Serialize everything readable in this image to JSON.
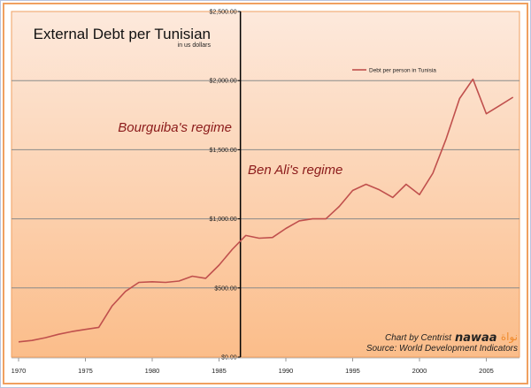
{
  "chart_data": {
    "type": "line",
    "title": "External Debt per Tunisian",
    "subtitle": "in us dollars",
    "xlabel": "",
    "ylabel": "",
    "ylim": [
      0,
      2500
    ],
    "xlim": [
      1970,
      2007
    ],
    "grid": true,
    "legend_position": "top-right",
    "y_ticks": [
      "$0.00",
      "$500.00",
      "$1,000.00",
      "$1,500.00",
      "$2,000.00",
      "$2,500.00"
    ],
    "x_ticks": [
      "1970",
      "1975",
      "1980",
      "1985",
      "1990",
      "1995",
      "2000",
      "2005"
    ],
    "x": [
      1970,
      1971,
      1972,
      1973,
      1974,
      1975,
      1976,
      1977,
      1978,
      1979,
      1980,
      1981,
      1982,
      1983,
      1984,
      1985,
      1986,
      1987,
      1988,
      1989,
      1990,
      1991,
      1992,
      1993,
      1994,
      1995,
      1996,
      1997,
      1998,
      1999,
      2000,
      2001,
      2002,
      2003,
      2004,
      2005,
      2006,
      2007
    ],
    "series": [
      {
        "name": "Debt per person in Tunisia",
        "color": "#c0504d",
        "values": [
          110,
          120,
          140,
          165,
          185,
          200,
          215,
          370,
          475,
          540,
          545,
          540,
          550,
          585,
          570,
          665,
          780,
          880,
          860,
          865,
          930,
          985,
          1000,
          1000,
          1090,
          1205,
          1250,
          1210,
          1155,
          1250,
          1175,
          1330,
          1580,
          1870,
          2010,
          1760,
          1820,
          1880
        ]
      }
    ],
    "annotations": [
      {
        "text": "Bourguiba's regime",
        "color": "#8b1a1a"
      },
      {
        "text": "Ben Ali's regime",
        "color": "#8b1a1a"
      },
      {
        "text": "vertical divider at 1986.6",
        "year": 1986.6
      }
    ]
  },
  "title": "External Debt per Tunisian",
  "subtitle": "in us dollars",
  "legend_label": "Debt per person in Tunisia",
  "annotation_left": "Bourguiba's regime",
  "annotation_right": "Ben Ali's regime",
  "credit": "Chart by Centrist",
  "brand_latin": "nawaa",
  "brand_arabic": "نواة",
  "source": "Source: World Development Indicators",
  "colors": {
    "line": "#c0504d",
    "annotation": "#8b1a1a",
    "frame": "#f0a060",
    "gradient_top": "#fde9dc",
    "gradient_bottom": "#fbbd8a",
    "brand_orange": "#f08a2c"
  }
}
